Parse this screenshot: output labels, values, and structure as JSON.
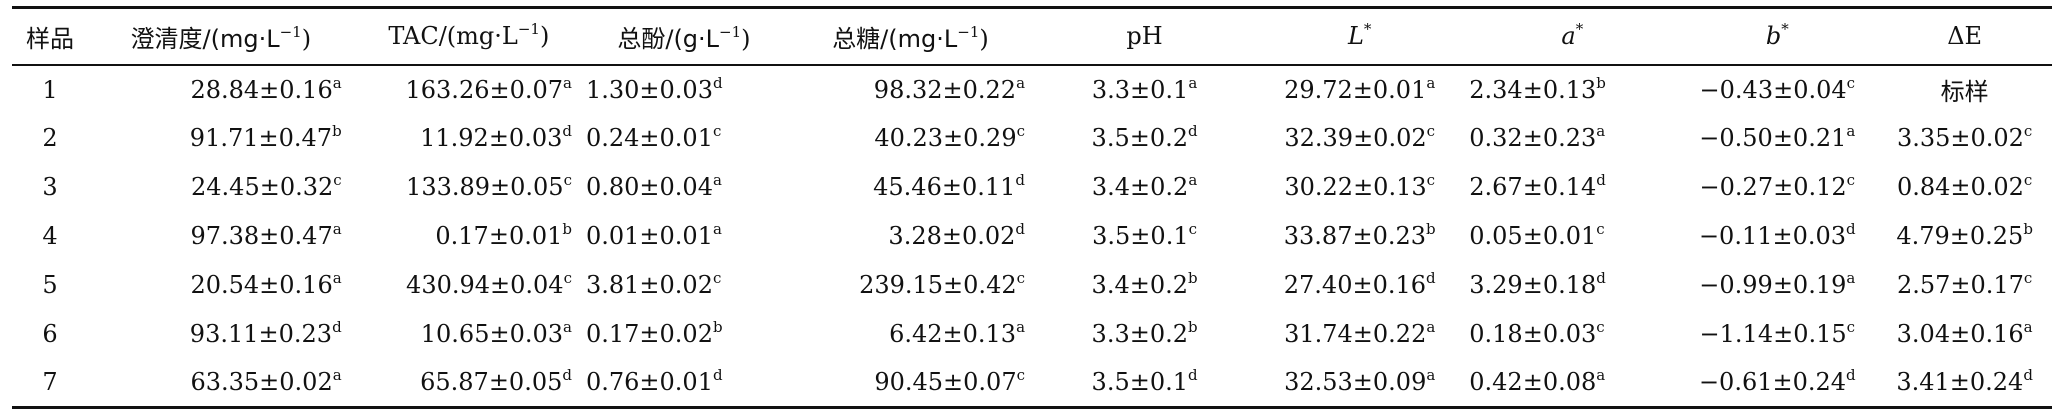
{
  "table": {
    "headers": {
      "sample": "样品",
      "clarity": "澄清度/(mg·L",
      "clarity_sup": "−1",
      "clarity_close": ")",
      "tac": "TAC/(mg·L",
      "tac_sup": "−1",
      "tac_close": ")",
      "phenol": "总酚/(g·L",
      "phenol_sup": "−1",
      "phenol_close": ")",
      "sugar": "总糖/(mg·L",
      "sugar_sup": "−1",
      "sugar_close": ")",
      "ph": "pH",
      "L": "L",
      "L_sup": "*",
      "a": "a",
      "a_sup": "*",
      "b": "b",
      "b_sup": "*",
      "dE": "ΔE"
    },
    "rows": [
      {
        "sample": "1",
        "clarity": "28.84±0.16",
        "clarity_sup": "a",
        "tac": "163.26±0.07",
        "tac_sup": "a",
        "phenol": "1.30±0.03",
        "phenol_sup": "d",
        "sugar": "98.32±0.22",
        "sugar_sup": "a",
        "ph": "3.3±0.1",
        "ph_sup": "a",
        "L": "29.72±0.01",
        "L_sup": "a",
        "a": "2.34±0.13",
        "a_sup": "b",
        "b": "−0.43±0.04",
        "b_sup": "c",
        "dE": "标样",
        "dE_sup": ""
      },
      {
        "sample": "2",
        "clarity": "91.71±0.47",
        "clarity_sup": "b",
        "tac": "11.92±0.03",
        "tac_sup": "d",
        "phenol": "0.24±0.01",
        "phenol_sup": "c",
        "sugar": "40.23±0.29",
        "sugar_sup": "c",
        "ph": "3.5±0.2",
        "ph_sup": "d",
        "L": "32.39±0.02",
        "L_sup": "c",
        "a": "0.32±0.23",
        "a_sup": "a",
        "b": "−0.50±0.21",
        "b_sup": "a",
        "dE": "3.35±0.02",
        "dE_sup": "c"
      },
      {
        "sample": "3",
        "clarity": "24.45±0.32",
        "clarity_sup": "c",
        "tac": "133.89±0.05",
        "tac_sup": "c",
        "phenol": "0.80±0.04",
        "phenol_sup": "a",
        "sugar": "45.46±0.11",
        "sugar_sup": "d",
        "ph": "3.4±0.2",
        "ph_sup": "a",
        "L": "30.22±0.13",
        "L_sup": "c",
        "a": "2.67±0.14",
        "a_sup": "d",
        "b": "−0.27±0.12",
        "b_sup": "c",
        "dE": "0.84±0.02",
        "dE_sup": "c"
      },
      {
        "sample": "4",
        "clarity": "97.38±0.47",
        "clarity_sup": "a",
        "tac": "0.17±0.01",
        "tac_sup": "b",
        "phenol": "0.01±0.01",
        "phenol_sup": "a",
        "sugar": "3.28±0.02",
        "sugar_sup": "d",
        "ph": "3.5±0.1",
        "ph_sup": "c",
        "L": "33.87±0.23",
        "L_sup": "b",
        "a": "0.05±0.01",
        "a_sup": "c",
        "b": "−0.11±0.03",
        "b_sup": "d",
        "dE": "4.79±0.25",
        "dE_sup": "b"
      },
      {
        "sample": "5",
        "clarity": "20.54±0.16",
        "clarity_sup": "a",
        "tac": "430.94±0.04",
        "tac_sup": "c",
        "phenol": "3.81±0.02",
        "phenol_sup": "c",
        "sugar": "239.15±0.42",
        "sugar_sup": "c",
        "ph": "3.4±0.2",
        "ph_sup": "b",
        "L": "27.40±0.16",
        "L_sup": "d",
        "a": "3.29±0.18",
        "a_sup": "d",
        "b": "−0.99±0.19",
        "b_sup": "a",
        "dE": "2.57±0.17",
        "dE_sup": "c"
      },
      {
        "sample": "6",
        "clarity": "93.11±0.23",
        "clarity_sup": "d",
        "tac": "10.65±0.03",
        "tac_sup": "a",
        "phenol": "0.17±0.02",
        "phenol_sup": "b",
        "sugar": "6.42±0.13",
        "sugar_sup": "a",
        "ph": "3.3±0.2",
        "ph_sup": "b",
        "L": "31.74±0.22",
        "L_sup": "a",
        "a": "0.18±0.03",
        "a_sup": "c",
        "b": "−1.14±0.15",
        "b_sup": "c",
        "dE": "3.04±0.16",
        "dE_sup": "a"
      },
      {
        "sample": "7",
        "clarity": "63.35±0.02",
        "clarity_sup": "a",
        "tac": "65.87±0.05",
        "tac_sup": "d",
        "phenol": "0.76±0.01",
        "phenol_sup": "d",
        "sugar": "90.45±0.07",
        "sugar_sup": "c",
        "ph": "3.5±0.1",
        "ph_sup": "d",
        "L": "32.53±0.09",
        "L_sup": "a",
        "a": "0.42±0.08",
        "a_sup": "a",
        "b": "−0.61±0.24",
        "b_sup": "d",
        "dE": "3.41±0.24",
        "dE_sup": "d"
      }
    ]
  }
}
